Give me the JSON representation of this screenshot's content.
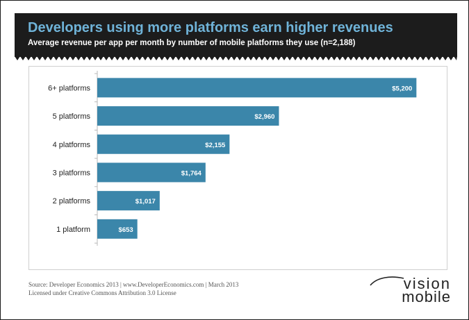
{
  "chart_data": {
    "type": "bar",
    "orientation": "horizontal",
    "title": "Developers using more platforms earn higher revenues",
    "subtitle": "Average revenue per app per month by number of mobile platforms they use (n=2,188)",
    "categories": [
      "6+ platforms",
      "5 platforms",
      "4 platforms",
      "3 platforms",
      "2 platforms",
      "1 platform"
    ],
    "values": [
      5200,
      2960,
      2155,
      1764,
      1017,
      653
    ],
    "data_labels": [
      "$5,200",
      "$2,960",
      "$2,155",
      "$1,764",
      "$1,017",
      "$653"
    ],
    "xlim": [
      0,
      5400
    ],
    "grid": false,
    "legend": "none",
    "bar_color": "#3b86aa",
    "title_color": "#6fb3d8",
    "header_bg": "#1c1c1c"
  },
  "footer": {
    "source": "Source: Developer Economics 2013 | www.DeveloperEconomics.com | March 2013",
    "license": "Licensed under Creative Commons Attribution 3.0 License"
  },
  "logo": {
    "line1": "vision",
    "line2": "mobile"
  }
}
